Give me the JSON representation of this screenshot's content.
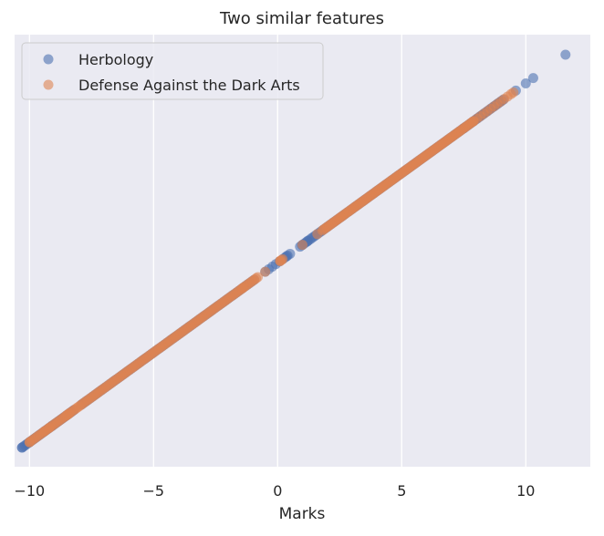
{
  "chart_data": {
    "type": "scatter",
    "title": "Two similar features",
    "xlabel": "Marks",
    "ylabel": "",
    "xlim": [
      -10.6,
      12.6
    ],
    "x_ticks": [
      {
        "value": -10,
        "label": "−10"
      },
      {
        "value": -5,
        "label": "−5"
      },
      {
        "value": 0,
        "label": "0"
      },
      {
        "value": 5,
        "label": "5"
      },
      {
        "value": 10,
        "label": "10"
      }
    ],
    "grid": true,
    "legend_position": "top-left",
    "series": [
      {
        "name": "Herbology",
        "color": "#4c72b0",
        "segments": [
          {
            "from": -10.3,
            "to": -8.2,
            "count": 34
          },
          {
            "from": -7.9,
            "to": -0.95,
            "count": 80
          },
          {
            "from": -0.5,
            "to": 0.5,
            "count": 8
          },
          {
            "from": 0.9,
            "to": 7.5,
            "count": 85
          },
          {
            "from": 7.5,
            "to": 9.1,
            "count": 24
          }
        ],
        "points": [
          {
            "x": -10.3,
            "y": -10.3
          },
          {
            "x": -10.0,
            "y": -10.0
          },
          {
            "x": -9.1,
            "y": -9.1
          },
          {
            "x": 0.3,
            "y": 0.3
          },
          {
            "x": 0.4,
            "y": 0.4
          },
          {
            "x": 1.0,
            "y": 1.0
          },
          {
            "x": 1.2,
            "y": 1.2
          },
          {
            "x": 9.6,
            "y": 9.6
          },
          {
            "x": 10.0,
            "y": 10.0
          },
          {
            "x": 10.3,
            "y": 10.3
          },
          {
            "x": 11.6,
            "y": 11.6
          }
        ]
      },
      {
        "name": "Defense Against the Dark Arts",
        "color": "#dd8452",
        "segments": [
          {
            "from": -10.0,
            "to": -8.4,
            "count": 24
          },
          {
            "from": -8.5,
            "to": -0.8,
            "count": 110
          },
          {
            "from": 0.1,
            "to": 0.2,
            "count": 3
          },
          {
            "from": 1.8,
            "to": 7.9,
            "count": 110
          },
          {
            "from": 7.9,
            "to": 9.4,
            "count": 12
          }
        ],
        "points": [
          {
            "x": -10.0,
            "y": -10.0
          },
          {
            "x": -9.4,
            "y": -9.4
          },
          {
            "x": -9.2,
            "y": -9.2
          },
          {
            "x": -0.5,
            "y": -0.5
          },
          {
            "x": -1.4,
            "y": -1.4
          },
          {
            "x": 0.1,
            "y": 0.1
          },
          {
            "x": 1.0,
            "y": 1.0
          },
          {
            "x": 1.6,
            "y": 1.6
          },
          {
            "x": 9.5,
            "y": 9.5
          }
        ]
      }
    ]
  }
}
